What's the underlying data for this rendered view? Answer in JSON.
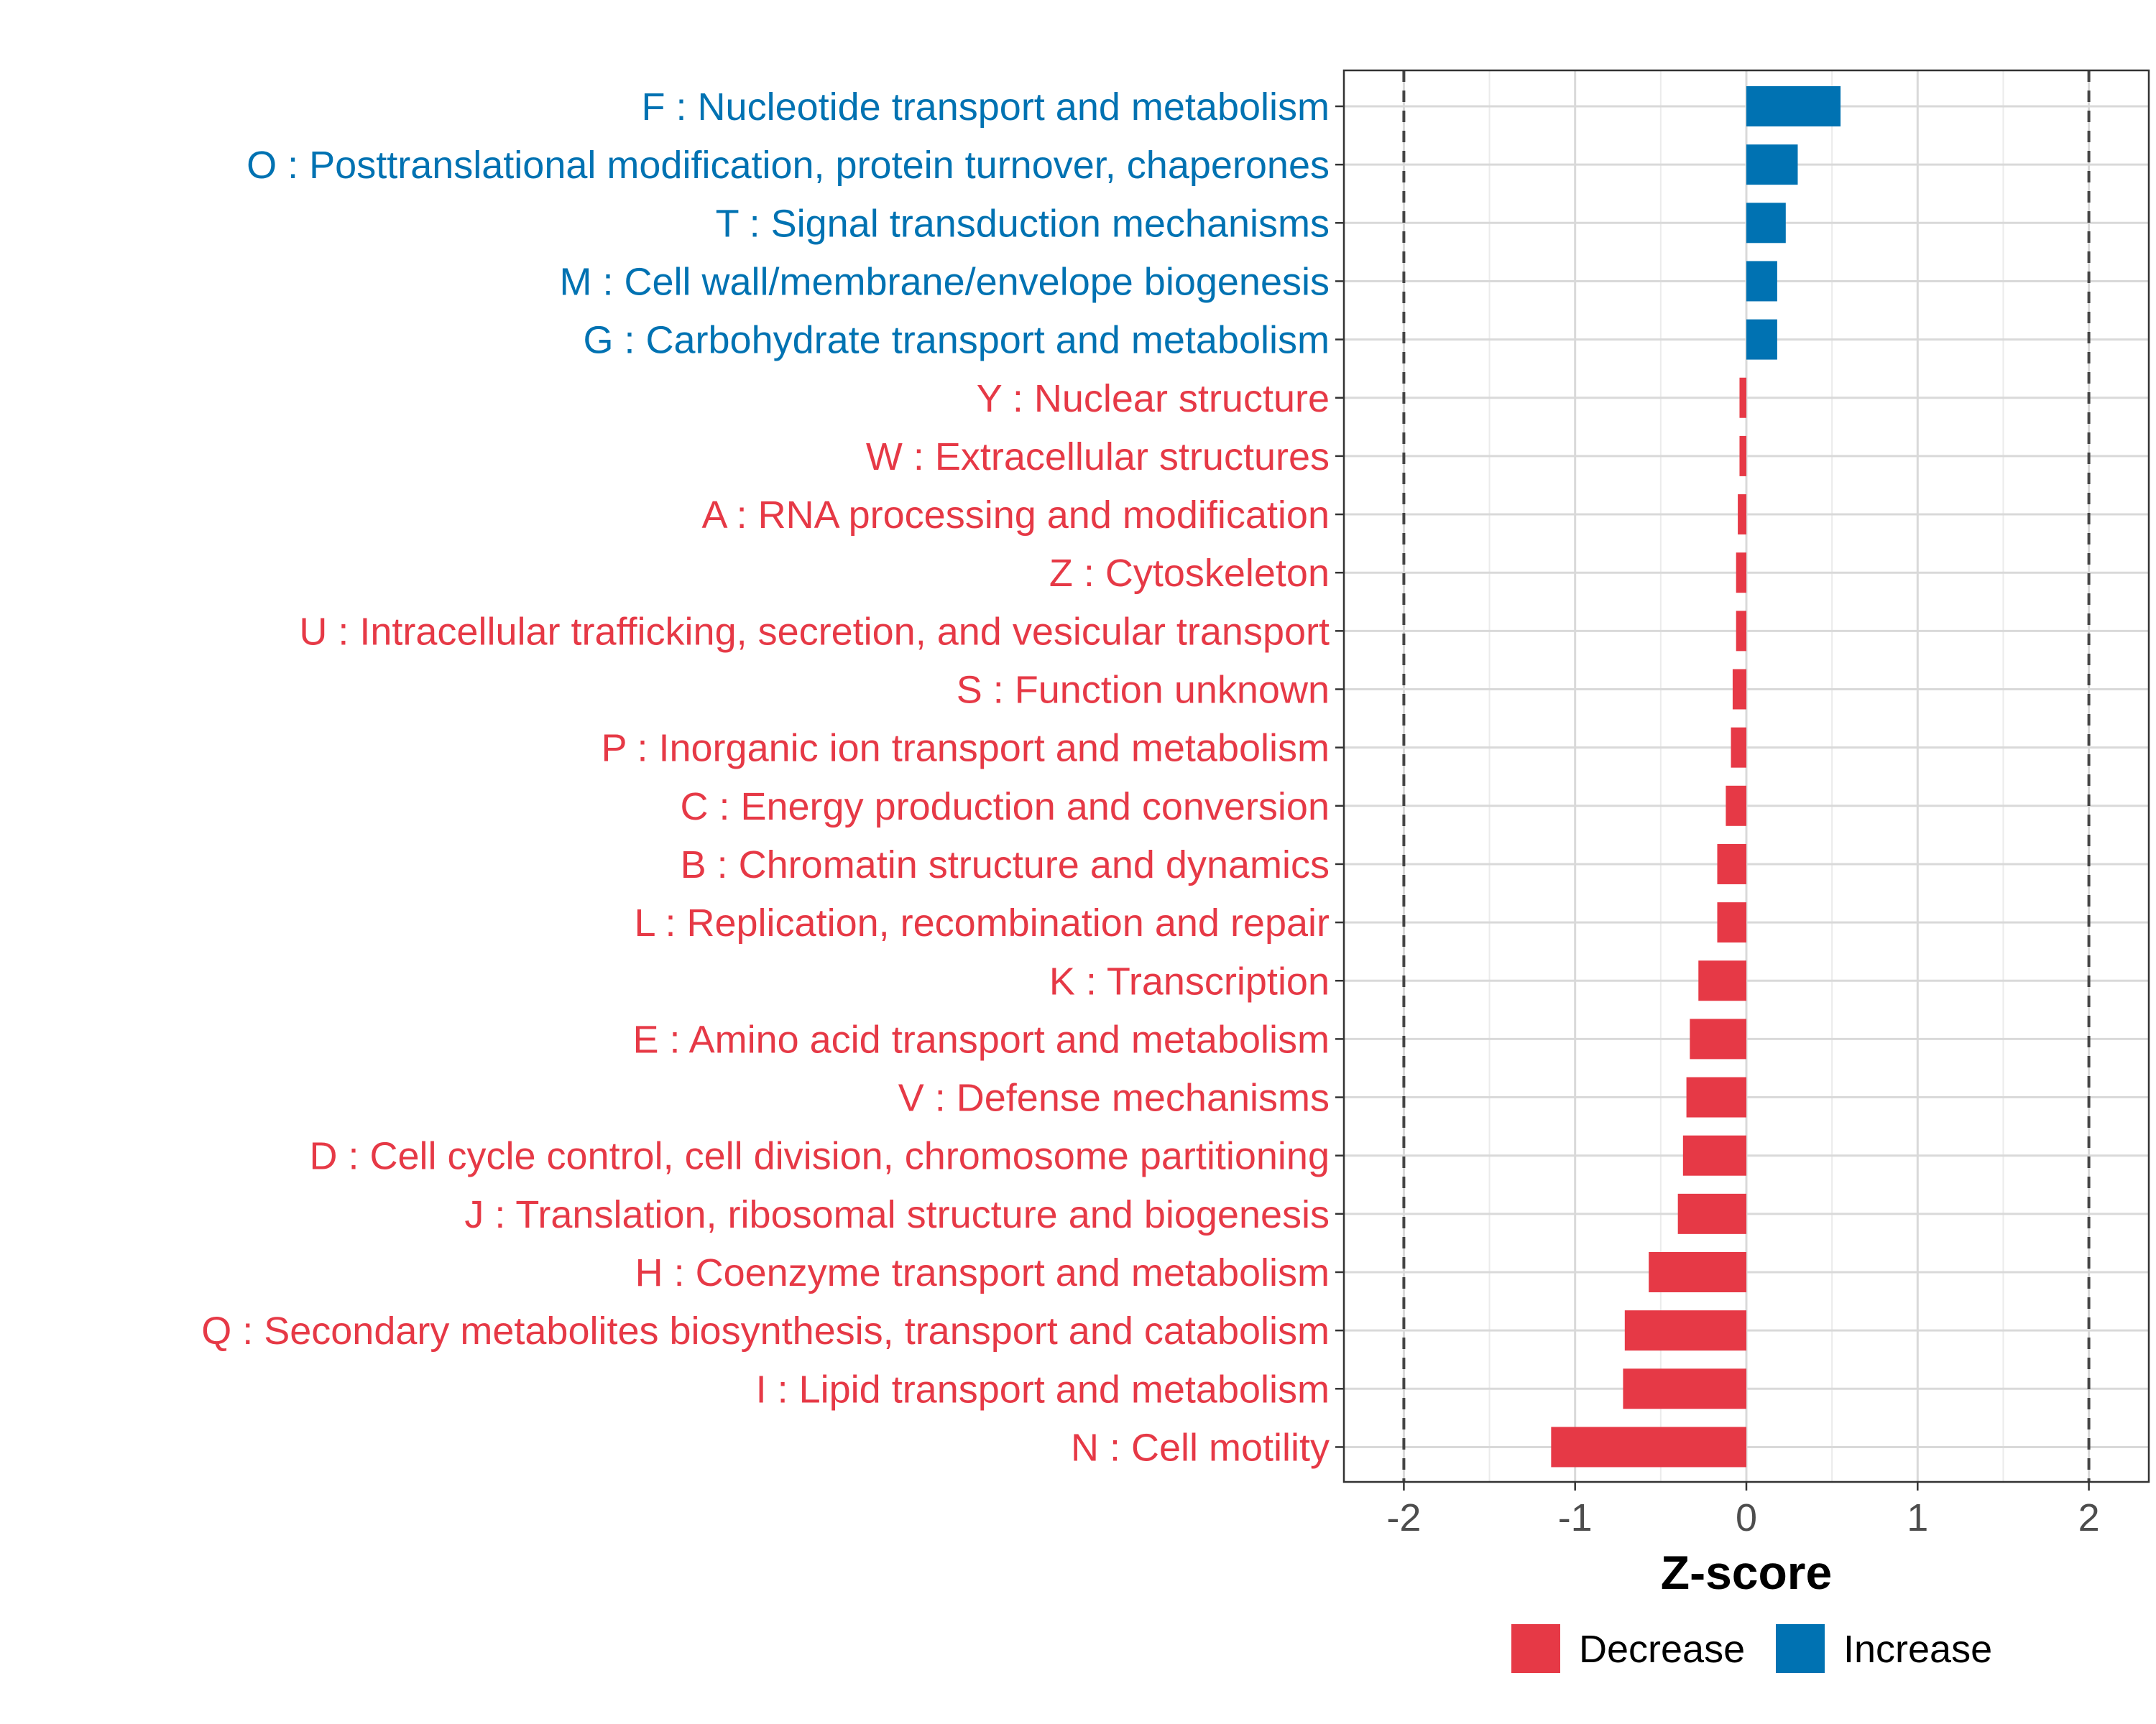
{
  "chart_data": {
    "type": "bar",
    "orientation": "horizontal",
    "title": "",
    "xlabel": "Z-score",
    "ylabel": "",
    "xlim": [
      -2.35,
      2.35
    ],
    "x_ticks": [
      -2,
      -1,
      0,
      1,
      2
    ],
    "x_tick_labels": [
      "-2",
      "-1",
      "0",
      "1",
      "2"
    ],
    "reference_lines": [
      -2,
      2
    ],
    "grid": true,
    "legend_position": "bottom",
    "colors": {
      "Decrease": "#E63946",
      "Increase": "#0072B2"
    },
    "legend": [
      {
        "key": "Decrease",
        "label": "Decrease"
      },
      {
        "key": "Increase",
        "label": "Increase"
      }
    ],
    "categories": [
      "F : Nucleotide transport and metabolism",
      "O : Posttranslational modification, protein turnover, chaperones",
      "T : Signal transduction mechanisms",
      "M : Cell wall/membrane/envelope biogenesis",
      "G : Carbohydrate transport and metabolism",
      "Y : Nuclear structure",
      "W : Extracellular structures",
      "A : RNA processing and modification",
      "Z : Cytoskeleton",
      "U : Intracellular trafficking, secretion, and vesicular transport",
      "S : Function unknown",
      "P : Inorganic ion transport and metabolism",
      "C : Energy production and conversion",
      "B : Chromatin structure and dynamics",
      "L : Replication, recombination and repair",
      "K : Transcription",
      "E : Amino acid transport and metabolism",
      "V : Defense mechanisms",
      "D : Cell cycle control, cell division, chromosome partitioning",
      "J : Translation, ribosomal structure and biogenesis",
      "H : Coenzyme transport and metabolism",
      "Q : Secondary metabolites biosynthesis, transport and catabolism",
      "I : Lipid transport and metabolism",
      "N : Cell motility"
    ],
    "values": [
      0.55,
      0.3,
      0.23,
      0.18,
      0.18,
      -0.04,
      -0.04,
      -0.05,
      -0.06,
      -0.06,
      -0.08,
      -0.09,
      -0.12,
      -0.17,
      -0.17,
      -0.28,
      -0.33,
      -0.35,
      -0.37,
      -0.4,
      -0.57,
      -0.71,
      -0.72,
      -1.14
    ],
    "direction": [
      "Increase",
      "Increase",
      "Increase",
      "Increase",
      "Increase",
      "Decrease",
      "Decrease",
      "Decrease",
      "Decrease",
      "Decrease",
      "Decrease",
      "Decrease",
      "Decrease",
      "Decrease",
      "Decrease",
      "Decrease",
      "Decrease",
      "Decrease",
      "Decrease",
      "Decrease",
      "Decrease",
      "Decrease",
      "Decrease",
      "Decrease"
    ]
  }
}
